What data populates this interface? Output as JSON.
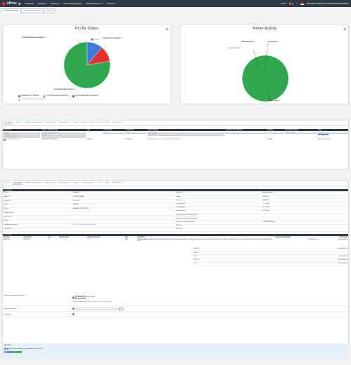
{
  "topbar": {
    "brand": "eProc",
    "menu": [
      "Dashboard",
      "e-Katalog",
      "Tendering",
      "Vendor Management",
      "Order Management",
      "Informasi"
    ],
    "lang": "EN-PS",
    "notif": "8",
    "company": "INDONESIA TEKNOLOGI INFORMASI (PERSERO)"
  },
  "tabs": [
    "PO & Tender Chart",
    "Statistik PR/PO/Aktiva",
    "Katalog"
  ],
  "po_chart": {
    "title": "PO By Status",
    "labels": {
      "unsigned": "UNSIGNED BY VENDOR: 1",
      "countersigned_eproc": "COUNTERSIGNED IN EPROC: 7",
      "countersigned_maximo": "COUNTERSIGNED IN MAXIMO: 1"
    },
    "legend": [
      "UNSIGNED BY VENDOR",
      "COUNTERSIGNED IN EPROC",
      "COUNTERSIGNED IN MAXIMO",
      "COUNTERSIGNED WITH NOTES"
    ],
    "colors": [
      "#3b7ddd",
      "#2fa84f",
      "#e8312f",
      "#cccccc"
    ]
  },
  "tender_chart": {
    "title": "Tender Activity",
    "labels": {
      "awarded": "Awarded Tender: 0",
      "new": "New Tender: 0",
      "lost": "Lost Tender: 0",
      "active": "Active Tender: 4"
    }
  },
  "chart_data": [
    {
      "type": "pie",
      "title": "PO By Status",
      "categories": [
        "UNSIGNED BY VENDOR",
        "COUNTERSIGNED IN EPROC",
        "COUNTERSIGNED IN MAXIMO",
        "COUNTERSIGNED WITH NOTES"
      ],
      "values": [
        1,
        7,
        1,
        0
      ]
    },
    {
      "type": "pie",
      "title": "Tender Activity",
      "categories": [
        "Awarded Tender",
        "New Tender",
        "Lost Tender",
        "Active Tender"
      ],
      "values": [
        0,
        0,
        0,
        4
      ]
    }
  ],
  "po_list": {
    "subtabs": [
      "List PO",
      "PO Detail",
      "Addendum Pengiriman",
      "Invoice Monitor",
      "Riwayat Monitor",
      "Vendor",
      "Dokumen Vendor",
      "EPO-X",
      "BAST",
      "SPK Monitor"
    ],
    "headers": [
      "NOMOR PO",
      "STATUS TANDATANGAN",
      "TIPE",
      "KOMODITAS",
      "NOTA DINAS",
      "NAMA VENDOR",
      "DELIVERY INFORMATION",
      "PRIORITY",
      "RECEIVING STATUS",
      "NILAI"
    ],
    "filters": [
      "Nomor PO",
      "DELIVERY STATUS",
      "APPROVAL STATUS"
    ],
    "filter_vals": [
      "-- UNSIGNED BY VENDOR --",
      "2025",
      "All",
      "-- ALL --",
      "Tahun",
      "Nama Vendor",
      "Nama Vendor",
      "Receiving Status",
      "Nilai PO"
    ],
    "btn_filter": "Filter",
    "btn_reset": "Reset",
    "row": {
      "no": "7150000014 (SEC-1)",
      "status": "UNSIGNED BY VENDOR",
      "type": "SERVICE",
      "nd": "00087634",
      "vendor": "INDONESIA TEKNOLOGI INFORMASI (PERSERO) 1",
      "delivery": "",
      "priority": "NORMAL",
      "value": "IDR 100,000,000.00"
    }
  },
  "detail": {
    "subtabs": [
      "List PO",
      "PO Detail",
      "Addendum Pengiriman",
      "Invoice Monitor",
      "Riwayat Monitor",
      "Vendor",
      "Dokumen Vendor",
      "EPO-X",
      "BAST",
      "SPK Monitor"
    ],
    "section": "PO DETAIL",
    "left": [
      [
        "Priority",
        "NORMAL"
      ],
      [
        "Nomor PO",
        "2712005/PEMA/25"
      ],
      [
        "Tanggal PO",
        "15 Jul 2025"
      ],
      [
        "Status",
        "NORMAL"
      ],
      [
        "Status",
        "UNSIGNED BY VENDOR"
      ],
      [
        "Tanggal Kontrak",
        ""
      ],
      [
        "Link Formulir",
        ""
      ],
      [
        "Formulir",
        ""
      ],
      [
        "Countersign Document",
        "PO-4717E5S1B5PB78C8BC0EJ.pdf"
      ],
      [
        "Delivery Date",
        ""
      ]
    ],
    "right": [
      [
        "Dibuat By",
        "Andi Darmawan"
      ],
      [
        "Buyer",
        "00087634"
      ],
      [
        "Requester",
        "00087634"
      ],
      [
        "Tanggal Terima",
        "17 Jul 2025"
      ],
      [
        "Tanggal BAST",
        "05 Jul 2025"
      ],
      [
        "Expected Date",
        "16 Jul 2025"
      ],
      [
        "Tanggal Permintaan Ketersediaan",
        ""
      ],
      [
        "Tanggal Penerimaan Tandatangan",
        ""
      ],
      [
        "Nomor Countersign Document",
        "17248/PE/PEMA/25"
      ],
      [
        "SPK Date",
        ""
      ],
      [
        "SPK Date",
        ""
      ]
    ],
    "items_section": "PO ITEMS",
    "item_headers": [
      "PO LINE",
      "NOMOR PR",
      "QTY",
      "SATUAN (EA)",
      "BIAYA TOTAL (IDR)",
      "UNIT",
      "DESKRIPSI",
      "HARGA SATUAN (IDR)",
      "TOTAL (IDR)"
    ],
    "item_row": [
      "SERVICE",
      "PR230506",
      "1",
      "",
      "0",
      "UNIT",
      "JASA PEMBANGUNAN PROGRAM SERTIFIKASI DAN PENGENDALIAN MUTU TENAGA TEKNIK PRODUCTIVITY FOR INDUSTRY COMPETITIVENESS UNIT 1 PT INDONESIA TEKNOLOGI INFORMASI TAHUN 2025",
      "100,000,000.00",
      "100,000,000.00"
    ],
    "totals": [
      [
        "Sub Total",
        "100,000,000.00"
      ],
      [
        "Diskon",
        ""
      ],
      [
        "PPN",
        "11,000,000.00"
      ],
      [
        "PPH 23%",
        "10,000,000.00"
      ],
      [
        "Total",
        "111,000,000.00"
      ]
    ],
    "upload_label": "Upload Countersign Document",
    "choose": "Choose File",
    "nofile": "No file chosen",
    "required": "*Attachment wajib - PDF",
    "hint": "Jenis yang diperbolehkan : doc, xls, pdf, docx, xlsx, zip, jpg, jpeg, png",
    "delivery_label": "Estimasi Delivery",
    "delivery_btn": "...",
    "desc_label": "Deskripsi",
    "approval_title": "Approval",
    "approval_check": "Saya setuju mengenai semua dokumen yang berlaku",
    "btn_back": "Back",
    "btn_sign": "Countersign"
  }
}
